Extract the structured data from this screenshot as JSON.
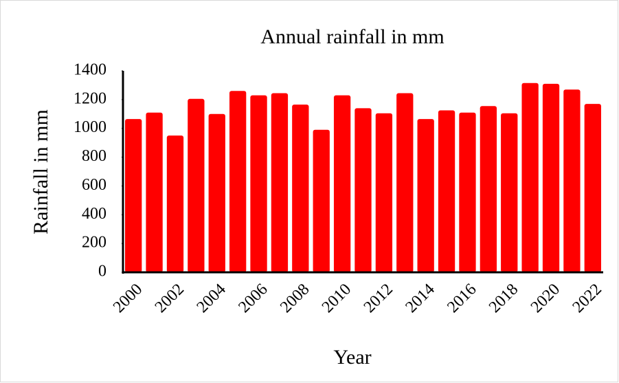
{
  "chart_data": {
    "type": "bar",
    "title": "Annual rainfall in mm",
    "x_label": "Year",
    "y_label": "Rainfall in mm",
    "categories": [
      "2000",
      null,
      "2002",
      null,
      "2004",
      null,
      "2006",
      null,
      "2008",
      null,
      "2010",
      null,
      "2012",
      null,
      "2014",
      null,
      "2016",
      null,
      "2018",
      null,
      "2020",
      null,
      "2022"
    ],
    "values": [
      1065,
      1110,
      950,
      1205,
      1100,
      1260,
      1230,
      1245,
      1165,
      990,
      1230,
      1140,
      1105,
      1245,
      1065,
      1125,
      1110,
      1155,
      1105,
      1315,
      1310,
      1270,
      1170
    ],
    "color": "#ff0000",
    "ylim": [
      0,
      1400
    ],
    "yticks": [
      0,
      200,
      400,
      600,
      800,
      1000,
      1200,
      1400
    ],
    "grid": false
  }
}
